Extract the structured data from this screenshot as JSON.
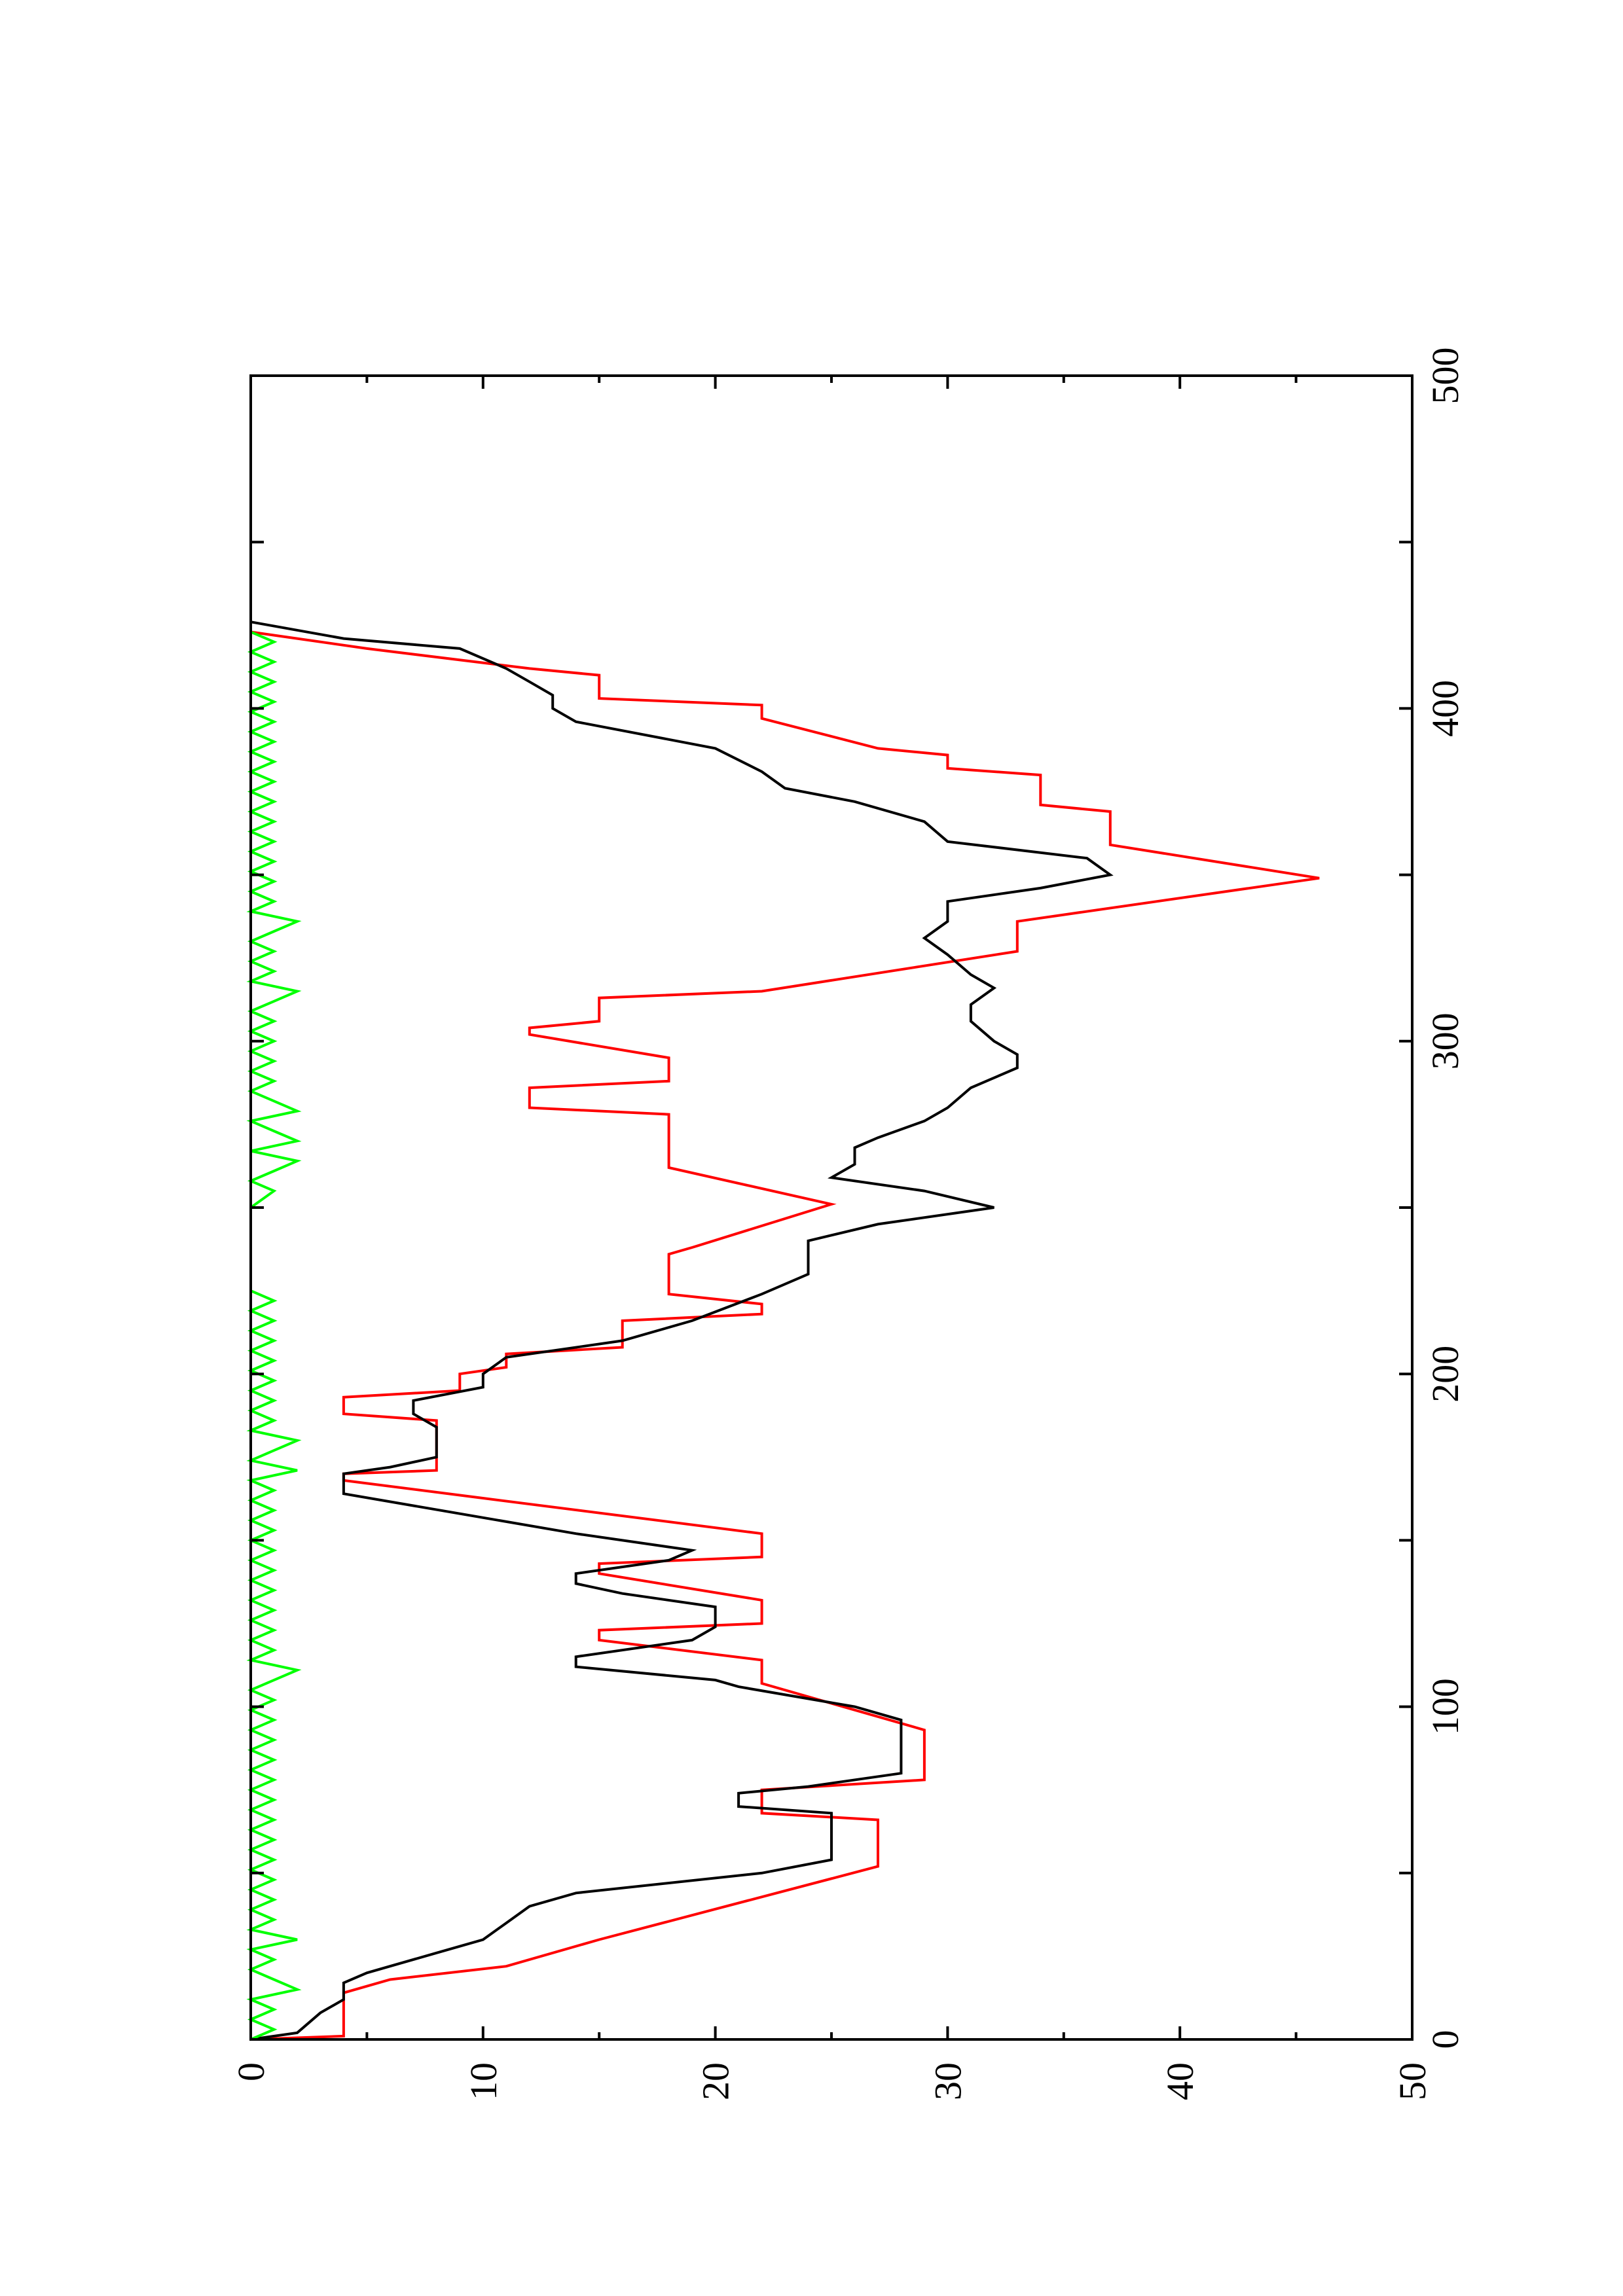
{
  "chart_data": {
    "type": "line",
    "orientation": "rotated 90° counter-clockwise (value axis runs along the bottom, x axis runs up the right side)",
    "title": "",
    "xlabel": "",
    "ylabel": "",
    "xlim": [
      0,
      500
    ],
    "ylim": [
      0,
      50
    ],
    "x_ticks": [
      "0",
      "100",
      "200",
      "300",
      "400",
      "500"
    ],
    "y_ticks": [
      "0",
      "10",
      "20",
      "30",
      "40",
      "50"
    ],
    "grid": false,
    "legend": "none",
    "colors": {
      "series_a": "#ff0000",
      "series_b": "#000000",
      "series_c": "#00ff00",
      "axes": "#000000"
    },
    "series": [
      {
        "color": "#ff0000",
        "points": [
          [
            0,
            0
          ],
          [
            1,
            4
          ],
          [
            14,
            4
          ],
          [
            18,
            6
          ],
          [
            22,
            11
          ],
          [
            30,
            15
          ],
          [
            52,
            27
          ],
          [
            66,
            27
          ],
          [
            68,
            22
          ],
          [
            75,
            22
          ],
          [
            78,
            29
          ],
          [
            93,
            29
          ],
          [
            107,
            22
          ],
          [
            114,
            22
          ],
          [
            120,
            15
          ],
          [
            123,
            15
          ],
          [
            125,
            22
          ],
          [
            132,
            22
          ],
          [
            140,
            15
          ],
          [
            143,
            15
          ],
          [
            145,
            22
          ],
          [
            152,
            22
          ],
          [
            168,
            4
          ],
          [
            170,
            4
          ],
          [
            171,
            8
          ],
          [
            186,
            8
          ],
          [
            188,
            4
          ],
          [
            193,
            4
          ],
          [
            195,
            9
          ],
          [
            200,
            9
          ],
          [
            202,
            11
          ],
          [
            206,
            11
          ],
          [
            208,
            16
          ],
          [
            216,
            16
          ],
          [
            218,
            22
          ],
          [
            221,
            22
          ],
          [
            224,
            18
          ],
          [
            236,
            18
          ],
          [
            238,
            19
          ],
          [
            251,
            25
          ],
          [
            262,
            18
          ],
          [
            278,
            18
          ],
          [
            280,
            12
          ],
          [
            286,
            12
          ],
          [
            288,
            18
          ],
          [
            295,
            18
          ],
          [
            302,
            12
          ],
          [
            304,
            12
          ],
          [
            306,
            15
          ],
          [
            313,
            15
          ],
          [
            315,
            22
          ],
          [
            327,
            33
          ],
          [
            336,
            33
          ],
          [
            338,
            35
          ],
          [
            349,
            46
          ],
          [
            359,
            37
          ],
          [
            369,
            37
          ],
          [
            371,
            34
          ],
          [
            380,
            34
          ],
          [
            382,
            30
          ],
          [
            386,
            30
          ],
          [
            388,
            27
          ],
          [
            397,
            22
          ],
          [
            401,
            22
          ],
          [
            403,
            15
          ],
          [
            410,
            15
          ],
          [
            412,
            12
          ],
          [
            418,
            5
          ],
          [
            423,
            0
          ]
        ]
      },
      {
        "color": "#000000",
        "points": [
          [
            0,
            0
          ],
          [
            2,
            2
          ],
          [
            8,
            3
          ],
          [
            12,
            4
          ],
          [
            17,
            4
          ],
          [
            20,
            5
          ],
          [
            26,
            8
          ],
          [
            30,
            10
          ],
          [
            35,
            11
          ],
          [
            40,
            12
          ],
          [
            44,
            14
          ],
          [
            50,
            22
          ],
          [
            54,
            25
          ],
          [
            60,
            25
          ],
          [
            68,
            25
          ],
          [
            70,
            21
          ],
          [
            74,
            21
          ],
          [
            76,
            24
          ],
          [
            80,
            28
          ],
          [
            84,
            28
          ],
          [
            90,
            28
          ],
          [
            96,
            28
          ],
          [
            100,
            26
          ],
          [
            106,
            21
          ],
          [
            108,
            20
          ],
          [
            112,
            14
          ],
          [
            115,
            14
          ],
          [
            120,
            19
          ],
          [
            124,
            20
          ],
          [
            130,
            20
          ],
          [
            134,
            16
          ],
          [
            137,
            14
          ],
          [
            140,
            14
          ],
          [
            144,
            18
          ],
          [
            147,
            19
          ],
          [
            152,
            14
          ],
          [
            158,
            9
          ],
          [
            164,
            4
          ],
          [
            170,
            4
          ],
          [
            172,
            6
          ],
          [
            175,
            8
          ],
          [
            180,
            8
          ],
          [
            184,
            8
          ],
          [
            188,
            7
          ],
          [
            192,
            7
          ],
          [
            196,
            10
          ],
          [
            200,
            10
          ],
          [
            205,
            11
          ],
          [
            210,
            16
          ],
          [
            216,
            19
          ],
          [
            224,
            22
          ],
          [
            230,
            24
          ],
          [
            240,
            24
          ],
          [
            245,
            27
          ],
          [
            250,
            32
          ],
          [
            255,
            29
          ],
          [
            259,
            25
          ],
          [
            263,
            26
          ],
          [
            268,
            26
          ],
          [
            271,
            27
          ],
          [
            276,
            29
          ],
          [
            280,
            30
          ],
          [
            286,
            31
          ],
          [
            292,
            33
          ],
          [
            296,
            33
          ],
          [
            300,
            32
          ],
          [
            306,
            31
          ],
          [
            311,
            31
          ],
          [
            316,
            32
          ],
          [
            320,
            31
          ],
          [
            326,
            30
          ],
          [
            331,
            29
          ],
          [
            336,
            30
          ],
          [
            342,
            30
          ],
          [
            346,
            34
          ],
          [
            350,
            37
          ],
          [
            355,
            36
          ],
          [
            360,
            30
          ],
          [
            366,
            29
          ],
          [
            372,
            26
          ],
          [
            376,
            23
          ],
          [
            381,
            22
          ],
          [
            388,
            20
          ],
          [
            396,
            14
          ],
          [
            400,
            13
          ],
          [
            404,
            13
          ],
          [
            408,
            12
          ],
          [
            412,
            11
          ],
          [
            418,
            9
          ],
          [
            421,
            4
          ],
          [
            426,
            0
          ]
        ]
      },
      {
        "color": "#00ff00",
        "points": [
          [
            0,
            0
          ],
          [
            3,
            1
          ],
          [
            6,
            0
          ],
          [
            9,
            1
          ],
          [
            12,
            0
          ],
          [
            15,
            2
          ],
          [
            18,
            1
          ],
          [
            21,
            0
          ],
          [
            24,
            1
          ],
          [
            27,
            0
          ],
          [
            30,
            2
          ],
          [
            33,
            0
          ],
          [
            36,
            1
          ],
          [
            39,
            0
          ],
          [
            42,
            1
          ],
          [
            45,
            0
          ],
          [
            48,
            1
          ],
          [
            51,
            0
          ],
          [
            54,
            1
          ],
          [
            57,
            0
          ],
          [
            60,
            1
          ],
          [
            63,
            0
          ],
          [
            66,
            1
          ],
          [
            69,
            0
          ],
          [
            72,
            1
          ],
          [
            75,
            0
          ],
          [
            78,
            1
          ],
          [
            81,
            0
          ],
          [
            84,
            1
          ],
          [
            87,
            0
          ],
          [
            90,
            1
          ],
          [
            93,
            0
          ],
          [
            96,
            1
          ],
          [
            99,
            0
          ],
          [
            102,
            1
          ],
          [
            105,
            0
          ],
          [
            108,
            1
          ],
          [
            111,
            2
          ],
          [
            114,
            0
          ],
          [
            117,
            1
          ],
          [
            120,
            0
          ],
          [
            123,
            1
          ],
          [
            126,
            0
          ],
          [
            129,
            1
          ],
          [
            132,
            0
          ],
          [
            135,
            1
          ],
          [
            138,
            0
          ],
          [
            141,
            1
          ],
          [
            144,
            0
          ],
          [
            147,
            1
          ],
          [
            150,
            0
          ],
          [
            153,
            1
          ],
          [
            156,
            0
          ],
          [
            159,
            1
          ],
          [
            162,
            0
          ],
          [
            165,
            1
          ],
          [
            168,
            0
          ],
          [
            171,
            2
          ],
          [
            174,
            0
          ],
          [
            177,
            1
          ],
          [
            180,
            2
          ],
          [
            183,
            0
          ],
          [
            186,
            1
          ],
          [
            189,
            0
          ],
          [
            192,
            1
          ],
          [
            195,
            0
          ],
          [
            198,
            1
          ],
          [
            201,
            0
          ],
          [
            204,
            1
          ],
          [
            207,
            0
          ],
          [
            210,
            1
          ],
          [
            213,
            0
          ],
          [
            216,
            1
          ],
          [
            219,
            0
          ],
          [
            222,
            1
          ],
          [
            225,
            0
          ],
          [
            230,
            0
          ],
          [
            240,
            0
          ],
          [
            250,
            0
          ],
          [
            255,
            1
          ],
          [
            258,
            0
          ],
          [
            261,
            1
          ],
          [
            264,
            2
          ],
          [
            267,
            0
          ],
          [
            270,
            2
          ],
          [
            273,
            1
          ],
          [
            276,
            0
          ],
          [
            279,
            2
          ],
          [
            282,
            1
          ],
          [
            285,
            0
          ],
          [
            288,
            1
          ],
          [
            291,
            0
          ],
          [
            294,
            1
          ],
          [
            297,
            0
          ],
          [
            300,
            1
          ],
          [
            303,
            0
          ],
          [
            306,
            1
          ],
          [
            309,
            0
          ],
          [
            312,
            1
          ],
          [
            315,
            2
          ],
          [
            318,
            0
          ],
          [
            321,
            1
          ],
          [
            324,
            0
          ],
          [
            327,
            1
          ],
          [
            330,
            0
          ],
          [
            333,
            1
          ],
          [
            336,
            2
          ],
          [
            339,
            0
          ],
          [
            342,
            1
          ],
          [
            345,
            0
          ],
          [
            348,
            1
          ],
          [
            351,
            0
          ],
          [
            354,
            1
          ],
          [
            357,
            0
          ],
          [
            360,
            1
          ],
          [
            363,
            0
          ],
          [
            366,
            1
          ],
          [
            369,
            0
          ],
          [
            372,
            1
          ],
          [
            375,
            0
          ],
          [
            378,
            1
          ],
          [
            381,
            0
          ],
          [
            384,
            1
          ],
          [
            387,
            0
          ],
          [
            390,
            1
          ],
          [
            393,
            0
          ],
          [
            396,
            1
          ],
          [
            399,
            0
          ],
          [
            402,
            1
          ],
          [
            405,
            0
          ],
          [
            408,
            1
          ],
          [
            411,
            0
          ],
          [
            414,
            1
          ],
          [
            417,
            0
          ],
          [
            420,
            1
          ],
          [
            423,
            0
          ],
          [
            426,
            0
          ]
        ]
      }
    ]
  }
}
